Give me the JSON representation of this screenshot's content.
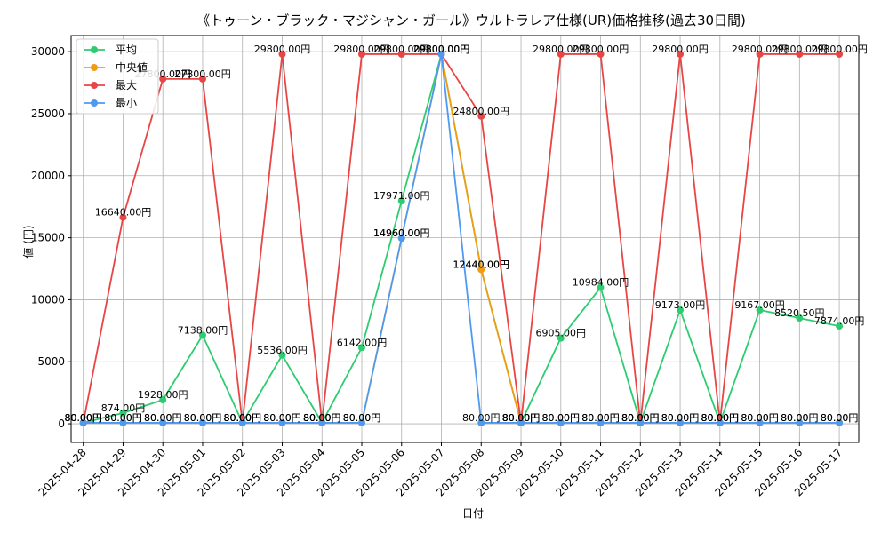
{
  "chart_data": {
    "type": "line",
    "title": "《トゥーン・ブラック・マジシャン・ガール》ウルトラレア仕様(UR)価格推移(過去30日間)",
    "xlabel": "日付",
    "ylabel": "値 (円)",
    "ylim": [
      -1500,
      31300
    ],
    "yticks": [
      0,
      5000,
      10000,
      15000,
      20000,
      25000,
      30000
    ],
    "grid": true,
    "legend_position": "top-left",
    "categories": [
      "2025-04-28",
      "2025-04-29",
      "2025-04-30",
      "2025-05-01",
      "2025-05-02",
      "2025-05-03",
      "2025-05-04",
      "2025-05-05",
      "2025-05-06",
      "2025-05-07",
      "2025-05-08",
      "2025-05-09",
      "2025-05-10",
      "2025-05-11",
      "2025-05-12",
      "2025-05-13",
      "2025-05-14",
      "2025-05-15",
      "2025-05-16",
      "2025-05-17"
    ],
    "series": [
      {
        "name": "平均",
        "color": "#2ecc71",
        "values": [
          80,
          874,
          1928,
          7138,
          80,
          5536,
          80,
          6142,
          17971,
          29800,
          12440,
          80,
          6905,
          10984,
          80,
          9173,
          80,
          9167,
          8520.5,
          7874
        ]
      },
      {
        "name": "中央値",
        "color": "#f39c12",
        "values": [
          80,
          80,
          80,
          80,
          80,
          80,
          80,
          80,
          14960,
          29800,
          12440,
          80,
          80,
          80,
          80,
          80,
          80,
          80,
          80,
          80
        ]
      },
      {
        "name": "最大",
        "color": "#e84545",
        "values": [
          80,
          16640,
          27800,
          27800,
          80,
          29800,
          80,
          29800,
          29800,
          29800,
          24800,
          80,
          29800,
          29800,
          80,
          29800,
          80,
          29800,
          29800,
          29800
        ]
      },
      {
        "name": "最小",
        "color": "#4e9af1",
        "values": [
          80,
          80,
          80,
          80,
          80,
          80,
          80,
          80,
          14960,
          29800,
          80,
          80,
          80,
          80,
          80,
          80,
          80,
          80,
          80,
          80
        ]
      }
    ],
    "label_suffix": "円",
    "label_decimals": 2
  }
}
